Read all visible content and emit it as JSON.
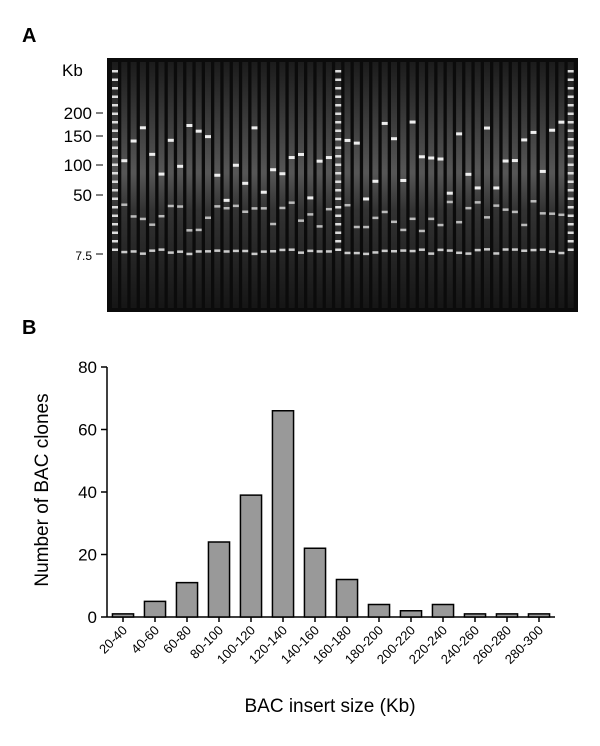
{
  "panel_a": {
    "label": "A",
    "unit": "Kb",
    "markers": [
      "200",
      "150",
      "100",
      "50",
      "7.5"
    ]
  },
  "chart_data": {
    "type": "bar",
    "panel_label": "B",
    "categories": [
      "20-40",
      "40-60",
      "60-80",
      "80-100",
      "100-120",
      "120-140",
      "140-160",
      "160-180",
      "180-200",
      "200-220",
      "220-240",
      "240-260",
      "260-280",
      "280-300"
    ],
    "values": [
      1,
      5,
      11,
      24,
      39,
      66,
      22,
      12,
      4,
      2,
      4,
      1,
      1,
      1
    ],
    "color": "#999999",
    "ylabel": "Number of BAC clones",
    "xlabel": "BAC insert size (Kb)",
    "ylim": [
      0,
      80
    ],
    "yticks": [
      0,
      20,
      40,
      60,
      80
    ],
    "grid": false
  }
}
